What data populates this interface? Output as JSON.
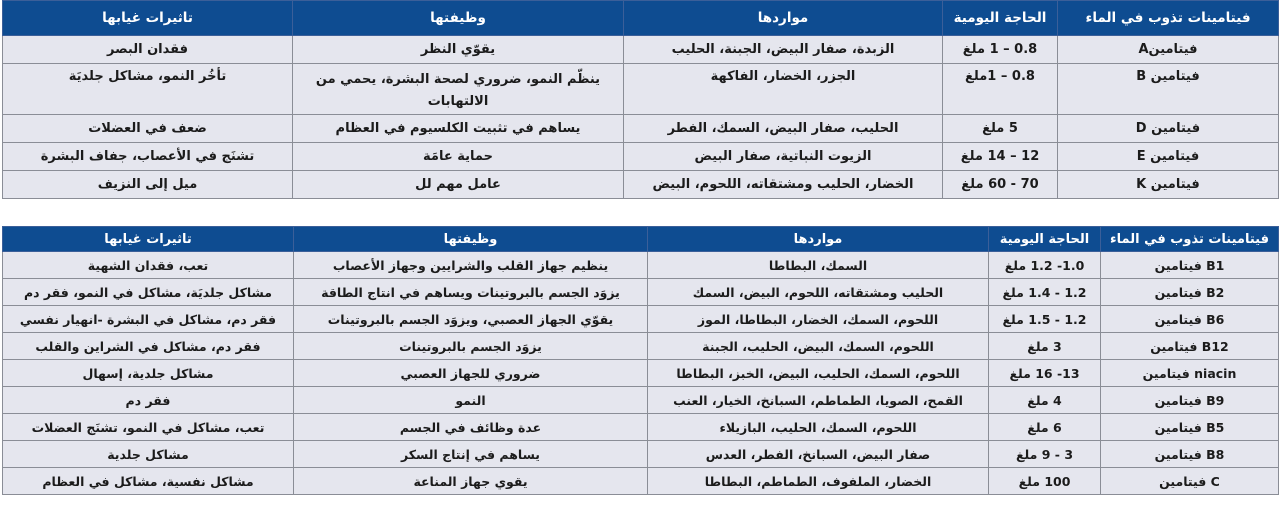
{
  "colors": {
    "header_bg": "#0e4c91",
    "header_text": "#ffffff",
    "row_bg": "#e5e6ee",
    "border": "#8a8d96"
  },
  "table1": {
    "headers": [
      "فيتامينات تذوب في الماء",
      "الحاجة اليومية",
      "مواردها",
      "وظيفتها",
      "تاثيرات غيابها"
    ],
    "rows": [
      [
        "فيتامينA",
        "0.8 – 1 ملغ",
        "الزبدة، صفار البيض، الجبنة، الحليب",
        "يقوّي النظر",
        "فقدان البصر"
      ],
      [
        "فيتامين B",
        "0.8 – 1ملغ",
        "الجزر، الخضار، الفاكهة",
        "ينظّم النمو، ضروري لصحة البشرة، يحمي من الالتهابات",
        "تأخُر النمو، مشاكل جلديَة"
      ],
      [
        "فيتامين D",
        "5 ملغ",
        "الحليب، صفار البيض، السمك، الفطر",
        "يساهم في تثبيت الكلسيوم في العظام",
        "ضعف في العضلات"
      ],
      [
        "فيتامين E",
        "12 – 14 ملغ",
        "الزيوت النباتية، صفار البيض",
        "حماية عامَة",
        "تشنَج في الأعصاب، جفاف البشرة"
      ],
      [
        "فيتامين K",
        "70 - 60 ملغ",
        "الخضار، الحليب ومشتقاته، اللحوم، البيض",
        "عامل مهم لل",
        "ميل إلى النزيف"
      ]
    ]
  },
  "table2": {
    "headers": [
      "فيتامينات تذوب في الماء",
      "الحاجة اليومية",
      "مواردها",
      "وظيفتها",
      "تاثيرات غيابها"
    ],
    "rows": [
      [
        "B1 فيتامين",
        "1.0- 1.2 ملغ",
        "السمك، البطاطا",
        "ينظيم جهاز القلب والشرايين وجهاز الأعصاب",
        "تعب، فقدان الشهية"
      ],
      [
        "B2 فيتامين",
        "1.2 - 1.4 ملغ",
        "الحليب ومشتقاته، اللحوم، البيض، السمك",
        "يزوَد الجسم بالبروتينات ويساهم في انتاج الطاقة",
        "مشاكل جلديَة، مشاكل في النمو، فقر دم"
      ],
      [
        "B6 فيتامين",
        "1.2 - 1.5 ملغ",
        "اللحوم، السمك، الخضار، البطاطا، الموز",
        "يقوّي الجهاز العصبي، ويزوَد الجسم بالبروتينات",
        "فقر دم، مشاكل في البشرة -انهيار نفسي"
      ],
      [
        "B12 فيتامين",
        "3 ملغ",
        "اللحوم، السمك، البيض، الحليب، الجبنة",
        "يزوَد الجسم بالبروتينات",
        "فقر دم، مشاكل في الشراين والقلب"
      ],
      [
        "niacin فيتامين",
        "13- 16 ملغ",
        "اللحوم، السمك، الحليب، البيض، الخبز، البطاطا",
        "ضروري للجهاز العصبي",
        "مشاكل جلدية، إسهال"
      ],
      [
        "B9 فيتامين",
        "4 ملغ",
        "القمح، الصويا، الطماطم، السبانخ، الخيار، العنب",
        "النمو",
        "فقر دم"
      ],
      [
        "B5 فيتامين",
        "6 ملغ",
        "اللحوم، السمك، الحليب، البازيلاء",
        "عدة وظائف في الجسم",
        "تعب، مشاكل في النمو، تشنَج العضلات"
      ],
      [
        "B8 فيتامين",
        "3 - 9 ملغ",
        "صفار البيض، السبانخ، الفطر، العدس",
        "يساهم في إنتاج السكر",
        "مشاكل جلدية"
      ],
      [
        "C فيتامين",
        "100 ملغ",
        "الخضار، الملفوف، الطماطم، البطاطا",
        "يقوي جهاز المناعة",
        "مشاكل نفسية، مشاكل في العظام"
      ]
    ]
  }
}
